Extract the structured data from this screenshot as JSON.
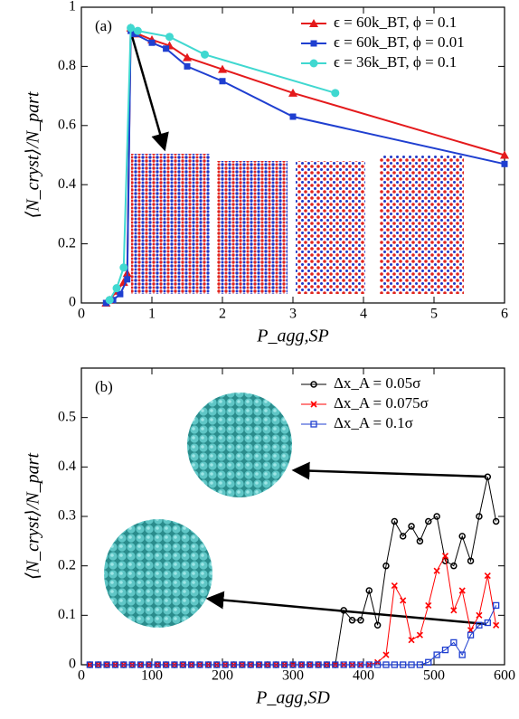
{
  "chart_data": [
    {
      "type": "line",
      "panel_label": "(a)",
      "x_label": "P_agg,SP",
      "y_label": "⟨N_cryst⟩/N_part",
      "xlim": [
        0,
        6
      ],
      "ylim": [
        0,
        1
      ],
      "xticks": [
        0,
        1,
        2,
        3,
        4,
        5,
        6
      ],
      "yticks": [
        0,
        0.2,
        0.4,
        0.6,
        0.8,
        1
      ],
      "legend": "upper right",
      "series": [
        {
          "name": "ϵ = 60k_BT, ϕ = 0.1",
          "color": "#e41a1c",
          "marker": "triangle",
          "x": [
            0.35,
            0.4,
            0.5,
            0.6,
            0.65,
            0.7,
            0.8,
            1,
            1.25,
            1.5,
            2,
            3,
            6
          ],
          "values": [
            0,
            0.01,
            0.04,
            0.07,
            0.1,
            0.93,
            0.91,
            0.89,
            0.87,
            0.83,
            0.79,
            0.71,
            0.5
          ]
        },
        {
          "name": "ϵ = 60k_BT, ϕ = 0.01",
          "color": "#1f3fd0",
          "marker": "square",
          "x": [
            0.35,
            0.45,
            0.55,
            0.65,
            0.7,
            0.75,
            1,
            1.2,
            1.5,
            2,
            3,
            6
          ],
          "values": [
            0,
            0.01,
            0.03,
            0.08,
            0.92,
            0.91,
            0.88,
            0.86,
            0.8,
            0.75,
            0.63,
            0.47
          ]
        },
        {
          "name": "ϵ = 36k_BT, ϕ = 0.1",
          "color": "#40d8d0",
          "marker": "circle",
          "x": [
            0.4,
            0.5,
            0.6,
            0.7,
            0.8,
            1.25,
            1.75,
            3.6
          ],
          "values": [
            0.01,
            0.05,
            0.12,
            0.93,
            0.92,
            0.9,
            0.84,
            0.71
          ]
        }
      ]
    },
    {
      "type": "line",
      "panel_label": "(b)",
      "x_label": "P_agg,SD",
      "y_label": "⟨N_cryst⟩/N_part",
      "xlim": [
        0,
        600
      ],
      "ylim": [
        0,
        0.6
      ],
      "xticks": [
        0,
        100,
        200,
        300,
        400,
        500,
        600
      ],
      "yticks": [
        0,
        0.1,
        0.2,
        0.3,
        0.4,
        0.5
      ],
      "legend": "upper right",
      "x": [
        12,
        24,
        36,
        48,
        60,
        72,
        84,
        96,
        108,
        120,
        132,
        144,
        156,
        168,
        180,
        192,
        204,
        216,
        228,
        240,
        252,
        264,
        276,
        288,
        300,
        312,
        324,
        336,
        348,
        360,
        372,
        384,
        396,
        408,
        420,
        432,
        444,
        456,
        468,
        480,
        492,
        504,
        516,
        528,
        540,
        552,
        564,
        576,
        588
      ],
      "series": [
        {
          "name": "Δx_A = 0.05σ",
          "color": "#000000",
          "marker": "open-circle",
          "values": [
            0,
            0,
            0,
            0,
            0,
            0,
            0,
            0,
            0,
            0,
            0,
            0,
            0,
            0,
            0,
            0,
            0,
            0,
            0,
            0,
            0,
            0,
            0,
            0,
            0,
            0,
            0,
            0,
            0,
            0,
            0.11,
            0.09,
            0.09,
            0.15,
            0.08,
            0.2,
            0.29,
            0.26,
            0.28,
            0.25,
            0.29,
            0.3,
            0.21,
            0.2,
            0.26,
            0.21,
            0.3,
            0.38,
            0.29
          ]
        },
        {
          "name": "Δx_A = 0.075σ",
          "color": "#ff0000",
          "marker": "cross",
          "values": [
            0,
            0,
            0,
            0,
            0,
            0,
            0,
            0,
            0,
            0,
            0,
            0,
            0,
            0,
            0,
            0,
            0,
            0,
            0,
            0,
            0,
            0,
            0,
            0,
            0,
            0,
            0,
            0,
            0,
            0,
            0,
            0,
            0,
            0,
            0.005,
            0.02,
            0.16,
            0.13,
            0.05,
            0.06,
            0.12,
            0.19,
            0.22,
            0.11,
            0.15,
            0.07,
            0.1,
            0.18,
            0.08
          ]
        },
        {
          "name": "Δx_A = 0.1σ",
          "color": "#1f3fd0",
          "marker": "open-square",
          "values": [
            0,
            0,
            0,
            0,
            0,
            0,
            0,
            0,
            0,
            0,
            0,
            0,
            0,
            0,
            0,
            0,
            0,
            0,
            0,
            0,
            0,
            0,
            0,
            0,
            0,
            0,
            0,
            0,
            0,
            0,
            0,
            0,
            0,
            0,
            0,
            0,
            0,
            0,
            0,
            0,
            0.005,
            0.02,
            0.03,
            0.045,
            0.02,
            0.06,
            0.08,
            0.085,
            0.12
          ]
        }
      ]
    }
  ]
}
